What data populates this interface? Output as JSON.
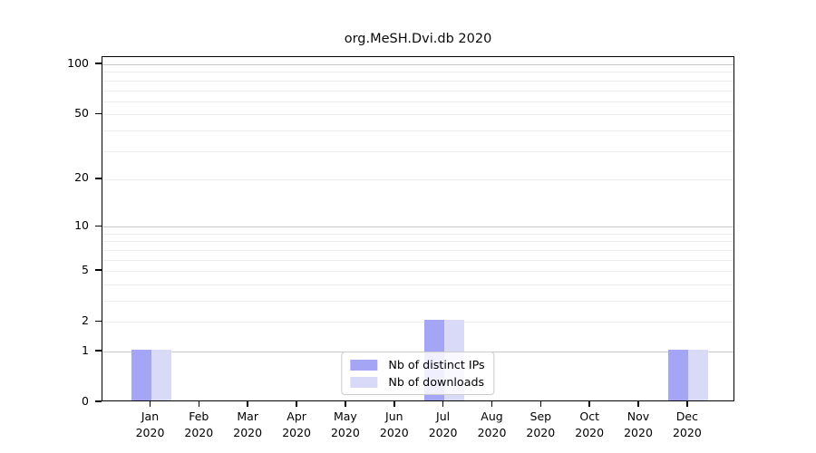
{
  "chart_data": {
    "type": "bar",
    "title": "org.MeSH.Dvi.db 2020",
    "categories": [
      "Jan",
      "Feb",
      "Mar",
      "Apr",
      "May",
      "Jun",
      "Jul",
      "Aug",
      "Sep",
      "Oct",
      "Nov",
      "Dec"
    ],
    "category_year": "2020",
    "series": [
      {
        "name": "Nb of distinct IPs",
        "color": "#a5a5f5",
        "values": [
          1,
          0,
          0,
          0,
          0,
          0,
          2,
          0,
          0,
          0,
          0,
          1
        ]
      },
      {
        "name": "Nb of downloads",
        "color": "#d9d9f8",
        "values": [
          1,
          0,
          0,
          0,
          0,
          0,
          2,
          0,
          0,
          0,
          0,
          1
        ]
      }
    ],
    "xlabel": "",
    "ylabel": "",
    "yscale": "log1p",
    "ytick_labels": [
      "0",
      "1",
      "2",
      "5",
      "10",
      "20",
      "50",
      "100"
    ],
    "yticks": [
      0,
      1,
      2,
      5,
      10,
      20,
      50,
      100
    ],
    "ylim": [
      0,
      110
    ],
    "grid": {
      "on": true,
      "major": [
        1,
        10,
        100
      ],
      "minor": [
        2,
        3,
        4,
        5,
        6,
        7,
        8,
        9,
        20,
        30,
        40,
        50,
        60,
        70,
        80,
        90
      ]
    },
    "legend": {
      "position": "lower center",
      "entries": [
        "Nb of distinct IPs",
        "Nb of downloads"
      ]
    }
  },
  "colors": {
    "axis": "#000000",
    "grid_major": "#c9c9c9",
    "grid_minor": "#ededed",
    "legend_border": "#cccccc",
    "background": "#ffffff",
    "bar_distinct_ips": "#a5a5f5",
    "bar_downloads": "#d9d9f8"
  }
}
